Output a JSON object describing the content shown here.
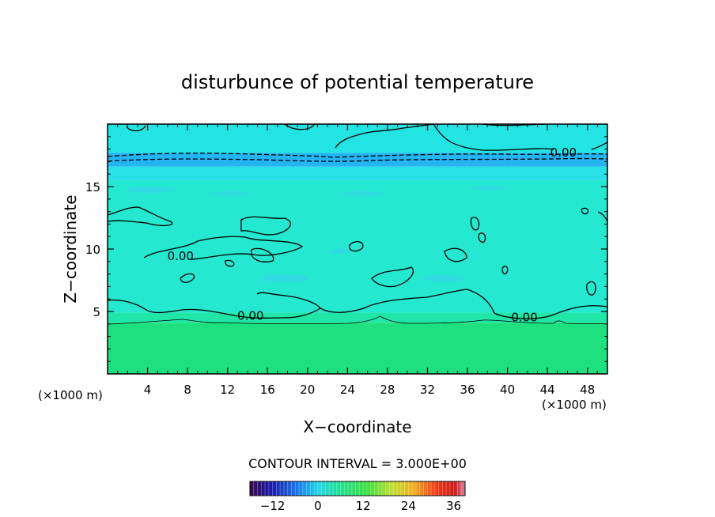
{
  "chart_data": {
    "type": "heatmap",
    "title": "disturbunce of potential temperature",
    "xlabel": "X−coordinate",
    "ylabel": "Z−coordinate",
    "x_unit": "(×1000 m)",
    "y_unit": "(×1000 m)",
    "xlim": [
      0,
      50
    ],
    "ylim": [
      0,
      20
    ],
    "x_ticks": [
      4,
      8,
      12,
      16,
      20,
      24,
      28,
      32,
      36,
      40,
      44,
      48
    ],
    "y_ticks": [
      5,
      10,
      15
    ],
    "contour_interval_text": "CONTOUR INTERVAL = 3.000E+00",
    "contour_labels": [
      {
        "text": "0.00",
        "x": 45.6,
        "y": 17.8
      },
      {
        "text": "0.00",
        "x": 7.3,
        "y": 9.5
      },
      {
        "text": "0.00",
        "x": 14.3,
        "y": 4.7
      },
      {
        "text": "0.00",
        "x": 41.7,
        "y": 4.6
      }
    ],
    "field_bands": [
      {
        "z_from": 0.0,
        "z_to": 4.1,
        "color": "#1ee07e"
      },
      {
        "z_from": 4.1,
        "z_to": 4.9,
        "color": "#20e6a8"
      },
      {
        "z_from": 4.9,
        "z_to": 15.5,
        "color": "#24e8cf"
      },
      {
        "z_from": 15.5,
        "z_to": 16.6,
        "color": "#2ae0e8"
      },
      {
        "z_from": 16.6,
        "z_to": 17.7,
        "color": "#24b4f2"
      },
      {
        "z_from": 17.7,
        "z_to": 20.0,
        "color": "#22e4e2"
      }
    ],
    "colorbar": {
      "range": [
        -18,
        39
      ],
      "ticks": [
        "−12",
        "0",
        "12",
        "24",
        "36"
      ],
      "tick_values": [
        -12,
        0,
        12,
        24,
        36
      ]
    }
  }
}
